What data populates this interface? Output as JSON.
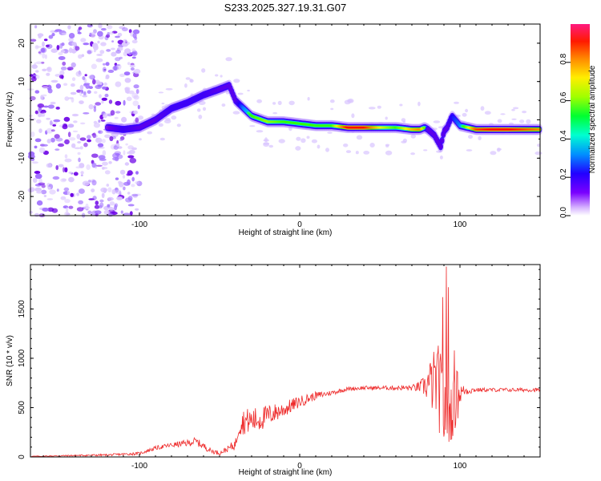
{
  "title": "S233.2025.327.19.31.G07",
  "colors": {
    "snr_line": "#ee2a2a",
    "axis": "#000000",
    "noise": "#8b3fff",
    "cmap": [
      "#f2e8ff",
      "#c9a6ff",
      "#6b00e6",
      "#2200ff",
      "#00a8ff",
      "#00ffe0",
      "#33ff00",
      "#ffee00",
      "#ff8800",
      "#ff0000",
      "#ff1a80"
    ]
  },
  "chart_data": [
    {
      "type": "heatmap",
      "xlabel": "Height of straight line (km)",
      "ylabel": "Frequency (Hz)",
      "xlim": [
        -168,
        150
      ],
      "ylim": [
        -25,
        25
      ],
      "xticks": [
        -100,
        0,
        100
      ],
      "xtick_labels": [
        "-100",
        "0",
        "100"
      ],
      "yticks": [
        -20,
        -10,
        0,
        10,
        20
      ],
      "ytick_labels": [
        "-20",
        "-10",
        "0",
        "10",
        "20"
      ],
      "noise_region": [
        -168,
        -100
      ],
      "ridge": {
        "x": [
          -120,
          -110,
          -100,
          -90,
          -80,
          -70,
          -60,
          -50,
          -44,
          -40,
          -35,
          -30,
          -20,
          -10,
          0,
          10,
          20,
          30,
          40,
          50,
          60,
          70,
          75,
          78,
          80,
          84,
          88,
          90,
          92,
          95,
          100,
          110,
          120,
          130,
          140,
          150
        ],
        "y": [
          -2,
          -2.5,
          -2,
          0,
          3,
          4.5,
          6.5,
          8,
          9,
          5,
          3,
          1,
          -0.5,
          -0.5,
          -1,
          -1.5,
          -1.5,
          -2,
          -2,
          -2,
          -2,
          -2.5,
          -2.5,
          -2,
          -2.5,
          -4,
          -7,
          -3,
          -2,
          1,
          -1.5,
          -2.5,
          -2.5,
          -2.5,
          -2.5,
          -2.5
        ],
        "amplitude": [
          0.25,
          0.35,
          0.3,
          0.3,
          0.35,
          0.35,
          0.35,
          0.3,
          0.3,
          0.3,
          0.5,
          0.6,
          0.65,
          0.6,
          0.6,
          0.6,
          0.6,
          0.9,
          0.9,
          0.7,
          0.6,
          0.75,
          0.8,
          0.6,
          0.3,
          0.3,
          0.3,
          0.3,
          0.3,
          0.4,
          0.5,
          0.85,
          0.9,
          0.9,
          0.85,
          0.8
        ]
      },
      "colorbar": {
        "label": "Normalized spectral amplitude",
        "range": [
          0,
          1
        ],
        "ticks": [
          0.0,
          0.2,
          0.4,
          0.6,
          0.8
        ],
        "tick_labels": [
          "0.0",
          "0.2",
          "0.4",
          "0.6",
          "0.8"
        ]
      }
    },
    {
      "type": "line",
      "xlabel": "Height of straight line (km)",
      "ylabel": "SNR (10 * v/v)",
      "xlim": [
        -168,
        150
      ],
      "ylim": [
        0,
        1950
      ],
      "xticks": [
        -100,
        0,
        100
      ],
      "xtick_labels": [
        "-100",
        "0",
        "100"
      ],
      "yticks": [
        0,
        500,
        1000,
        1500
      ],
      "ytick_labels": [
        "0",
        "500",
        "1000",
        "1500"
      ],
      "series": [
        {
          "name": "SNR",
          "x": [
            -168,
            -140,
            -120,
            -100,
            -90,
            -80,
            -70,
            -65,
            -60,
            -55,
            -50,
            -45,
            -40,
            -38,
            -35,
            -30,
            -25,
            -20,
            -10,
            0,
            10,
            20,
            30,
            40,
            50,
            60,
            70,
            75,
            78,
            80,
            84,
            86,
            88,
            90,
            92,
            94,
            96,
            98,
            100,
            102,
            110,
            120,
            130,
            140,
            150
          ],
          "y": [
            5,
            15,
            20,
            35,
            90,
            120,
            140,
            160,
            110,
            60,
            40,
            80,
            130,
            330,
            360,
            370,
            380,
            420,
            480,
            560,
            620,
            650,
            690,
            700,
            700,
            700,
            700,
            710,
            720,
            740,
            750,
            800,
            600,
            500,
            400,
            450,
            500,
            600,
            640,
            670,
            680,
            680,
            680,
            680,
            680
          ],
          "noise": [
            5,
            8,
            10,
            15,
            20,
            25,
            35,
            40,
            35,
            25,
            20,
            30,
            60,
            120,
            130,
            130,
            130,
            110,
            80,
            60,
            40,
            25,
            20,
            20,
            20,
            25,
            30,
            60,
            110,
            200,
            350,
            450,
            450,
            500,
            380,
            300,
            300,
            300,
            120,
            60,
            20,
            20,
            20,
            20,
            20
          ],
          "spikes": [
            {
              "x": 91.5,
              "y": 1930
            },
            {
              "x": 92.8,
              "y": 1720
            },
            {
              "x": 89.3,
              "y": 1620
            },
            {
              "x": 96.5,
              "y": 1080
            },
            {
              "x": 86.2,
              "y": 1060
            },
            {
              "x": 98.5,
              "y": 860
            }
          ]
        }
      ]
    }
  ]
}
